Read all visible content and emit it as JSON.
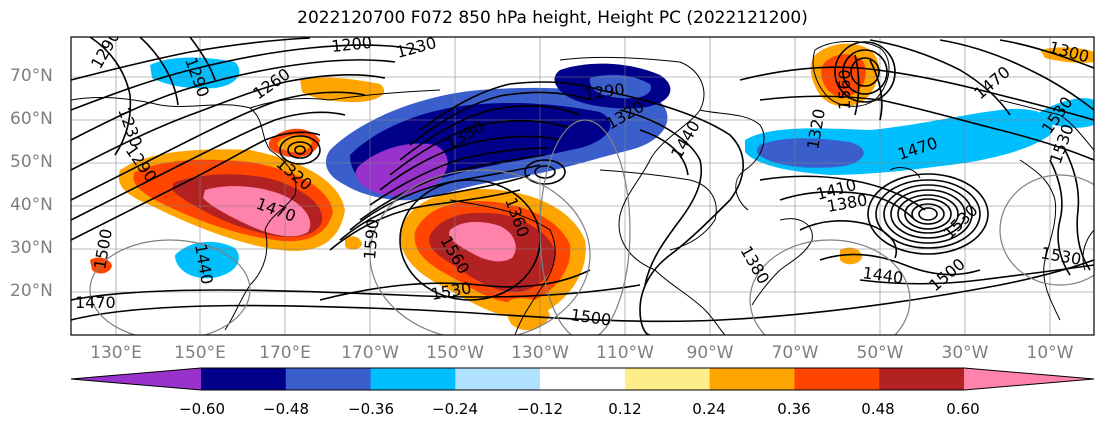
{
  "title": "2022120700 F072 850 hPa height, Height PC (2022121200)",
  "lat_labels": [
    "70°N",
    "60°N",
    "50°N",
    "40°N",
    "30°N",
    "20°N"
  ],
  "lon_labels": [
    "130°E",
    "150°E",
    "170°E",
    "170°W",
    "150°W",
    "130°W",
    "110°W",
    "90°W",
    "70°W",
    "50°W",
    "30°W",
    "10°W"
  ],
  "colorbar": {
    "ticks": [
      "−0.60",
      "−0.48",
      "−0.36",
      "−0.24",
      "−0.12",
      "0.12",
      "0.24",
      "0.36",
      "0.48",
      "0.60"
    ],
    "colors": [
      "#9932cc",
      "#00008b",
      "#3a5fcd",
      "#00bfff",
      "#b0e2ff",
      "#ffffff",
      "#ffec8b",
      "#ffa500",
      "#ff4500",
      "#b22222",
      "#ff82ab"
    ]
  },
  "contour_labels": [
    "1200",
    "1230",
    "1260",
    "1290",
    "1290",
    "1230",
    "1290",
    "1300",
    "1470",
    "1410",
    "1380",
    "1440",
    "1500",
    "1530",
    "1590",
    "1560",
    "1530",
    "1500",
    "1470",
    "1440",
    "1470",
    "1530",
    "1500",
    "1470",
    "1290",
    "1320",
    "1350",
    "1530",
    "1440",
    "1380",
    "1320",
    "1320",
    "1360",
    "1560",
    "1530"
  ]
}
